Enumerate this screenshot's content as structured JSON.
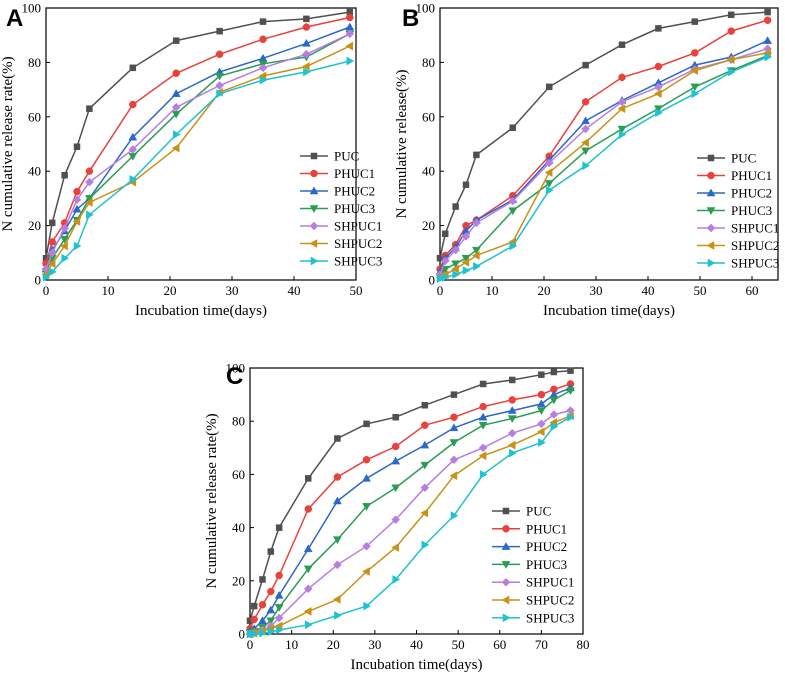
{
  "chart_data": [
    {
      "type": "line",
      "panel_label": "A",
      "xlabel": "Incubation time(days)",
      "ylabel": "N cumulative release rate(%)",
      "xlim": [
        0,
        50
      ],
      "ylim": [
        0,
        100
      ],
      "xticks": [
        0,
        10,
        20,
        30,
        40,
        50
      ],
      "yticks": [
        0,
        20,
        40,
        60,
        80,
        100
      ],
      "legend_position": "bottom-right",
      "series": [
        {
          "name": "PUC",
          "color": "#505050",
          "marker": "square",
          "x": [
            0,
            1,
            3,
            5,
            7,
            14,
            21,
            28,
            35,
            42,
            49
          ],
          "y": [
            8,
            21,
            38.5,
            49,
            63,
            78,
            88,
            91.5,
            95,
            96,
            98.5
          ]
        },
        {
          "name": "PHUC1",
          "color": "#e8423b",
          "marker": "circle",
          "x": [
            0,
            1,
            3,
            5,
            7,
            14,
            21,
            28,
            35,
            42,
            49
          ],
          "y": [
            6,
            14,
            21,
            32.5,
            40,
            64.5,
            76,
            83,
            88.5,
            93,
            96.5
          ]
        },
        {
          "name": "PHUC2",
          "color": "#2b68c9",
          "marker": "triangle-up",
          "x": [
            0,
            1,
            3,
            5,
            7,
            14,
            21,
            28,
            35,
            42,
            49
          ],
          "y": [
            4,
            11,
            18,
            26,
            30,
            52.5,
            68.5,
            76.5,
            81.5,
            87,
            93
          ]
        },
        {
          "name": "PHUC3",
          "color": "#2a9d52",
          "marker": "triangle-down",
          "x": [
            0,
            1,
            3,
            5,
            7,
            14,
            21,
            28,
            35,
            42,
            49
          ],
          "y": [
            3,
            8,
            15,
            22,
            30,
            45.5,
            61,
            75,
            79.5,
            82,
            90.5
          ]
        },
        {
          "name": "SHPUC1",
          "color": "#b77ee0",
          "marker": "diamond",
          "x": [
            0,
            1,
            3,
            5,
            7,
            14,
            21,
            28,
            35,
            42,
            49
          ],
          "y": [
            4,
            10,
            19,
            29.5,
            36,
            48,
            63.5,
            71.5,
            78,
            83,
            90.5
          ]
        },
        {
          "name": "SHPUC2",
          "color": "#c99116",
          "marker": "triangle-left",
          "x": [
            0,
            1,
            3,
            5,
            7,
            14,
            21,
            28,
            35,
            42,
            49
          ],
          "y": [
            2,
            6,
            12.5,
            21.5,
            28.5,
            36,
            48.5,
            69,
            75,
            78.5,
            86
          ]
        },
        {
          "name": "SHPUC3",
          "color": "#1fc2cf",
          "marker": "triangle-right",
          "x": [
            0,
            1,
            3,
            5,
            7,
            14,
            21,
            28,
            35,
            42,
            49
          ],
          "y": [
            1,
            3,
            8,
            12.5,
            24,
            37,
            53.5,
            68.5,
            73.5,
            76.5,
            80.5
          ]
        }
      ]
    },
    {
      "type": "line",
      "panel_label": "B",
      "xlabel": "Incubation time(days)",
      "ylabel": "N cumulative release(%)",
      "xlim": [
        0,
        65
      ],
      "ylim": [
        0,
        100
      ],
      "xticks": [
        0,
        10,
        20,
        30,
        40,
        50,
        60
      ],
      "yticks": [
        0,
        20,
        40,
        60,
        80,
        100
      ],
      "legend_position": "bottom-right",
      "series": [
        {
          "name": "PUC",
          "color": "#505050",
          "marker": "square",
          "x": [
            0,
            1,
            3,
            5,
            7,
            14,
            21,
            28,
            35,
            42,
            49,
            56,
            63
          ],
          "y": [
            8,
            17,
            27,
            35,
            46,
            56,
            71,
            79,
            86.5,
            92.5,
            95,
            97.5,
            98.5
          ]
        },
        {
          "name": "PHUC1",
          "color": "#e8423b",
          "marker": "circle",
          "x": [
            0,
            1,
            3,
            5,
            7,
            14,
            21,
            28,
            35,
            42,
            49,
            56,
            63
          ],
          "y": [
            4,
            9,
            13,
            20,
            22,
            31,
            45.5,
            65.5,
            74.5,
            78.5,
            83.5,
            91.5,
            95.5
          ]
        },
        {
          "name": "PHUC2",
          "color": "#2b68c9",
          "marker": "triangle-up",
          "x": [
            0,
            1,
            3,
            5,
            7,
            14,
            21,
            28,
            35,
            42,
            49,
            56,
            63
          ],
          "y": [
            3,
            8,
            12,
            18,
            22,
            29.5,
            44,
            58.5,
            66,
            72.5,
            79,
            82,
            88
          ]
        },
        {
          "name": "PHUC3",
          "color": "#2a9d52",
          "marker": "triangle-down",
          "x": [
            0,
            1,
            3,
            5,
            7,
            14,
            21,
            28,
            35,
            42,
            49,
            56,
            63
          ],
          "y": [
            1,
            4,
            6,
            8,
            11,
            25.5,
            35.5,
            47.5,
            55.5,
            63,
            71,
            77,
            82.5
          ]
        },
        {
          "name": "SHPUC1",
          "color": "#b77ee0",
          "marker": "diamond",
          "x": [
            0,
            1,
            3,
            5,
            7,
            14,
            21,
            28,
            35,
            42,
            49,
            56,
            63
          ],
          "y": [
            2,
            7,
            11,
            16,
            21,
            29,
            43,
            55.5,
            65.5,
            71,
            77.5,
            81,
            85
          ]
        },
        {
          "name": "SHPUC2",
          "color": "#c99116",
          "marker": "triangle-left",
          "x": [
            0,
            1,
            3,
            5,
            7,
            14,
            21,
            28,
            35,
            42,
            49,
            56,
            63
          ],
          "y": [
            1,
            2,
            4,
            6.5,
            9,
            14,
            39.5,
            50.5,
            63,
            68.5,
            77,
            81,
            83.5
          ]
        },
        {
          "name": "SHPUC3",
          "color": "#1fc2cf",
          "marker": "triangle-right",
          "x": [
            0,
            1,
            3,
            5,
            7,
            14,
            21,
            28,
            35,
            42,
            49,
            56,
            63
          ],
          "y": [
            0.5,
            1,
            2,
            3.5,
            5,
            12.5,
            33,
            42,
            53.5,
            61.5,
            68.5,
            76.5,
            82
          ]
        }
      ]
    },
    {
      "type": "line",
      "panel_label": "C",
      "xlabel": "Incubation time(days)",
      "ylabel": "N cumulative release rate(%)",
      "xlim": [
        0,
        80
      ],
      "ylim": [
        0,
        100
      ],
      "xticks": [
        0,
        10,
        20,
        30,
        40,
        50,
        60,
        70,
        80
      ],
      "yticks": [
        0,
        20,
        40,
        60,
        80,
        100
      ],
      "legend_position": "bottom-right",
      "series": [
        {
          "name": "PUC",
          "color": "#505050",
          "marker": "square",
          "x": [
            0,
            1,
            3,
            5,
            7,
            14,
            21,
            28,
            35,
            42,
            49,
            56,
            63,
            70,
            73,
            77
          ],
          "y": [
            5,
            10.5,
            20.5,
            31,
            40,
            58.5,
            73.5,
            79,
            81.5,
            86,
            90,
            94,
            95.5,
            97.5,
            98.5,
            99
          ]
        },
        {
          "name": "PHUC1",
          "color": "#e8423b",
          "marker": "circle",
          "x": [
            0,
            1,
            3,
            5,
            7,
            14,
            21,
            28,
            35,
            42,
            49,
            56,
            63,
            70,
            73,
            77
          ],
          "y": [
            2,
            5.5,
            11,
            16,
            22,
            47,
            59,
            65.5,
            70.5,
            78.5,
            81.5,
            85.5,
            88,
            90,
            92,
            94
          ]
        },
        {
          "name": "PHUC2",
          "color": "#2b68c9",
          "marker": "triangle-up",
          "x": [
            0,
            1,
            3,
            5,
            7,
            14,
            21,
            28,
            35,
            42,
            49,
            56,
            63,
            70,
            73,
            77
          ],
          "y": [
            1,
            2,
            5,
            9,
            14.5,
            32,
            50,
            58.5,
            65,
            71,
            77.5,
            81.5,
            84,
            86.5,
            90,
            92.5
          ]
        },
        {
          "name": "PHUC3",
          "color": "#2a9d52",
          "marker": "triangle-down",
          "x": [
            0,
            1,
            3,
            5,
            7,
            14,
            21,
            28,
            35,
            42,
            49,
            56,
            63,
            70,
            73,
            77
          ],
          "y": [
            0.5,
            1,
            2.5,
            5,
            10,
            24.5,
            35.5,
            48,
            55,
            63.5,
            72,
            78.5,
            81,
            84,
            88,
            91.5
          ]
        },
        {
          "name": "SHPUC1",
          "color": "#b77ee0",
          "marker": "diamond",
          "x": [
            0,
            1,
            3,
            5,
            7,
            14,
            21,
            28,
            35,
            42,
            49,
            56,
            63,
            70,
            73,
            77
          ],
          "y": [
            0,
            0.5,
            1.5,
            3,
            6,
            17,
            26,
            33,
            43,
            55,
            65.5,
            70,
            75.5,
            79,
            82.5,
            84
          ]
        },
        {
          "name": "SHPUC2",
          "color": "#c99116",
          "marker": "triangle-left",
          "x": [
            0,
            1,
            3,
            5,
            7,
            14,
            21,
            28,
            35,
            42,
            49,
            56,
            63,
            70,
            73,
            77
          ],
          "y": [
            0,
            0.3,
            1,
            2,
            3,
            8.5,
            13,
            23.5,
            32.5,
            45.5,
            59.5,
            67,
            71,
            76,
            79.5,
            82
          ]
        },
        {
          "name": "SHPUC3",
          "color": "#1fc2cf",
          "marker": "triangle-right",
          "x": [
            0,
            1,
            3,
            5,
            7,
            14,
            21,
            28,
            35,
            42,
            49,
            56,
            63,
            70,
            73,
            77
          ],
          "y": [
            0,
            0,
            0.3,
            0.8,
            1.5,
            3.5,
            7,
            10.5,
            20.5,
            33.5,
            44.5,
            60,
            68,
            72,
            78,
            81.5
          ]
        }
      ]
    }
  ]
}
